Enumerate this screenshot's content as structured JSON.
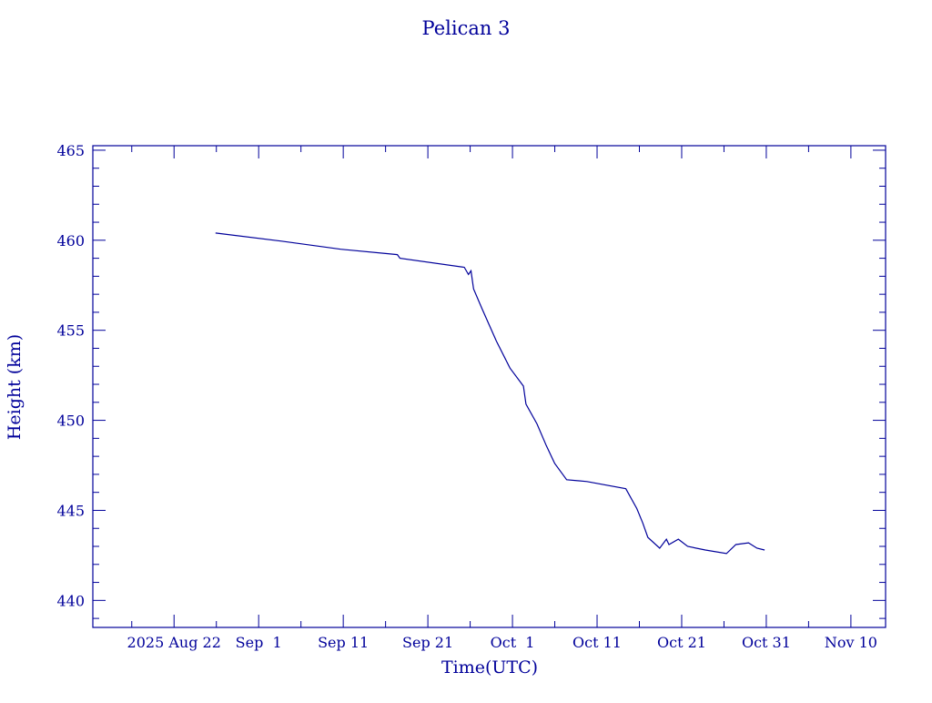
{
  "chart_data": {
    "type": "line",
    "title": "Pelican 3",
    "xlabel": "Time(UTC)",
    "ylabel": "Height (km)",
    "x_units": "days since 2025 Aug 22",
    "xlim": [
      -9.6,
      84.1
    ],
    "ylim": [
      438.5,
      465.25
    ],
    "x_ticks": [
      {
        "value": 0,
        "label": "2025 Aug 22"
      },
      {
        "value": 10,
        "label": "Sep  1"
      },
      {
        "value": 20,
        "label": "Sep 11"
      },
      {
        "value": 30,
        "label": "Sep 21"
      },
      {
        "value": 40,
        "label": "Oct  1"
      },
      {
        "value": 50,
        "label": "Oct 11"
      },
      {
        "value": 60,
        "label": "Oct 21"
      },
      {
        "value": 70,
        "label": "Oct 31"
      },
      {
        "value": 80,
        "label": "Nov 10"
      }
    ],
    "y_ticks": [
      440,
      445,
      450,
      455,
      460,
      465
    ],
    "grid": false,
    "color": "#00009a",
    "series": [
      {
        "name": "Height",
        "x": [
          4.9,
          12.7,
          19.7,
          26.4,
          26.7,
          34.3,
          34.8,
          35.1,
          35.4,
          36.4,
          38.1,
          39.7,
          41.3,
          41.6,
          42.9,
          44.0,
          45.0,
          46.4,
          48.8,
          53.4,
          54.7,
          55.4,
          56.0,
          57.4,
          58.2,
          58.5,
          59.6,
          60.7,
          62.8,
          65.3,
          66.4,
          67.9,
          68.9,
          69.8
        ],
        "y": [
          460.4,
          459.95,
          459.5,
          459.2,
          459.0,
          458.5,
          458.1,
          458.3,
          457.3,
          456.2,
          454.4,
          452.9,
          451.9,
          450.9,
          449.8,
          448.6,
          447.6,
          446.7,
          446.6,
          446.2,
          445.1,
          444.3,
          443.5,
          442.9,
          443.4,
          443.1,
          443.4,
          443.0,
          442.8,
          442.6,
          443.1,
          443.2,
          442.9,
          442.8
        ]
      }
    ]
  }
}
